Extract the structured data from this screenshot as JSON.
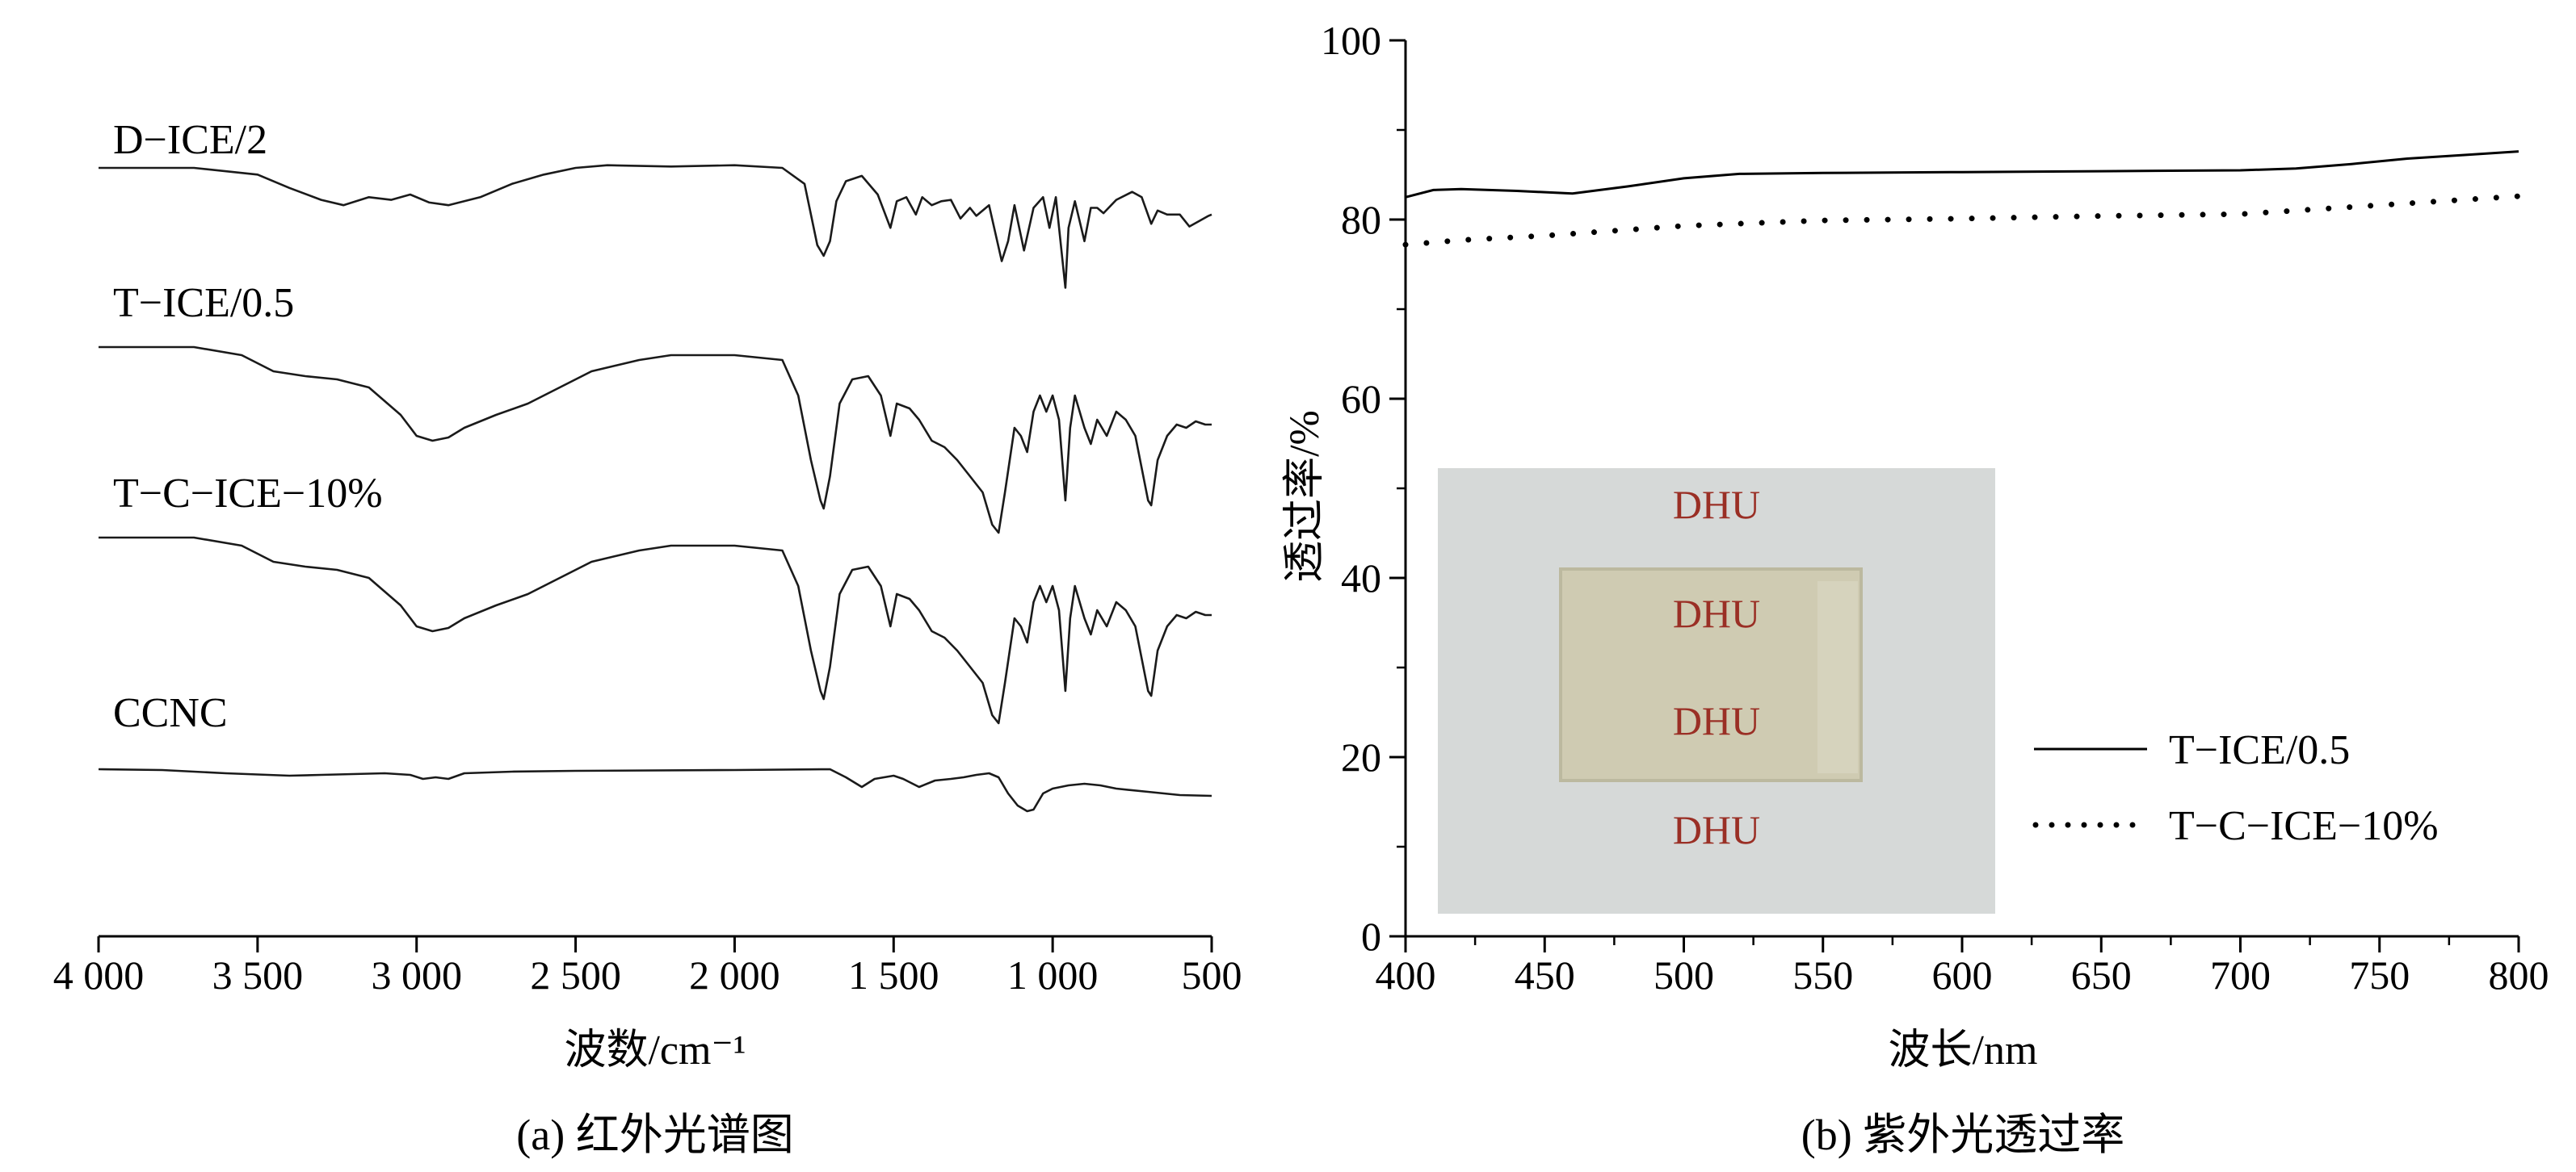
{
  "chart_data": [
    {
      "type": "line",
      "caption": "(a) 红外光谱图",
      "xlabel": "波数/cm⁻¹",
      "xlim": [
        4000,
        500
      ],
      "x_reversed": true,
      "xticks": [
        4000,
        3500,
        3000,
        2500,
        2000,
        1500,
        1000,
        500
      ],
      "xtick_labels": [
        "4 000",
        "3 500",
        "3 000",
        "2 500",
        "2 000",
        "1 500",
        "1 000",
        "500"
      ],
      "y_axis_shown": false,
      "series": [
        {
          "name": "D−ICE/2",
          "points": [
            [
              4000,
              0.0
            ],
            [
              3700,
              0.0
            ],
            [
              3500,
              -0.05
            ],
            [
              3400,
              -0.15
            ],
            [
              3300,
              -0.24
            ],
            [
              3230,
              -0.28
            ],
            [
              3150,
              -0.22
            ],
            [
              3080,
              -0.24
            ],
            [
              3020,
              -0.2
            ],
            [
              2960,
              -0.26
            ],
            [
              2900,
              -0.28
            ],
            [
              2800,
              -0.22
            ],
            [
              2700,
              -0.12
            ],
            [
              2600,
              -0.05
            ],
            [
              2500,
              0.0
            ],
            [
              2400,
              0.02
            ],
            [
              2200,
              0.01
            ],
            [
              2000,
              0.02
            ],
            [
              1850,
              0.0
            ],
            [
              1780,
              -0.12
            ],
            [
              1740,
              -0.58
            ],
            [
              1720,
              -0.66
            ],
            [
              1700,
              -0.55
            ],
            [
              1680,
              -0.25
            ],
            [
              1650,
              -0.1
            ],
            [
              1600,
              -0.06
            ],
            [
              1550,
              -0.2
            ],
            [
              1510,
              -0.45
            ],
            [
              1490,
              -0.25
            ],
            [
              1460,
              -0.22
            ],
            [
              1430,
              -0.35
            ],
            [
              1410,
              -0.22
            ],
            [
              1380,
              -0.28
            ],
            [
              1350,
              -0.25
            ],
            [
              1320,
              -0.24
            ],
            [
              1290,
              -0.38
            ],
            [
              1260,
              -0.3
            ],
            [
              1240,
              -0.36
            ],
            [
              1200,
              -0.28
            ],
            [
              1160,
              -0.7
            ],
            [
              1140,
              -0.55
            ],
            [
              1120,
              -0.28
            ],
            [
              1090,
              -0.62
            ],
            [
              1060,
              -0.3
            ],
            [
              1030,
              -0.22
            ],
            [
              1010,
              -0.45
            ],
            [
              990,
              -0.22
            ],
            [
              960,
              -0.9
            ],
            [
              950,
              -0.45
            ],
            [
              930,
              -0.25
            ],
            [
              900,
              -0.55
            ],
            [
              880,
              -0.3
            ],
            [
              860,
              -0.3
            ],
            [
              840,
              -0.34
            ],
            [
              800,
              -0.24
            ],
            [
              750,
              -0.18
            ],
            [
              720,
              -0.22
            ],
            [
              690,
              -0.42
            ],
            [
              670,
              -0.32
            ],
            [
              640,
              -0.35
            ],
            [
              600,
              -0.35
            ],
            [
              570,
              -0.44
            ],
            [
              540,
              -0.4
            ],
            [
              510,
              -0.36
            ],
            [
              500,
              -0.35
            ]
          ]
        },
        {
          "name": "T−ICE/0.5",
          "points": [
            [
              4000,
              0.0
            ],
            [
              3700,
              0.0
            ],
            [
              3550,
              -0.05
            ],
            [
              3450,
              -0.15
            ],
            [
              3350,
              -0.18
            ],
            [
              3250,
              -0.2
            ],
            [
              3150,
              -0.25
            ],
            [
              3050,
              -0.42
            ],
            [
              3000,
              -0.55
            ],
            [
              2950,
              -0.58
            ],
            [
              2900,
              -0.56
            ],
            [
              2850,
              -0.5
            ],
            [
              2750,
              -0.42
            ],
            [
              2650,
              -0.35
            ],
            [
              2550,
              -0.25
            ],
            [
              2450,
              -0.15
            ],
            [
              2300,
              -0.08
            ],
            [
              2200,
              -0.05
            ],
            [
              2000,
              -0.05
            ],
            [
              1850,
              -0.08
            ],
            [
              1800,
              -0.3
            ],
            [
              1760,
              -0.7
            ],
            [
              1730,
              -0.95
            ],
            [
              1720,
              -1.0
            ],
            [
              1700,
              -0.8
            ],
            [
              1670,
              -0.35
            ],
            [
              1630,
              -0.2
            ],
            [
              1580,
              -0.18
            ],
            [
              1540,
              -0.3
            ],
            [
              1510,
              -0.55
            ],
            [
              1490,
              -0.35
            ],
            [
              1450,
              -0.38
            ],
            [
              1420,
              -0.45
            ],
            [
              1380,
              -0.58
            ],
            [
              1340,
              -0.62
            ],
            [
              1300,
              -0.7
            ],
            [
              1260,
              -0.8
            ],
            [
              1220,
              -0.9
            ],
            [
              1190,
              -1.1
            ],
            [
              1170,
              -1.15
            ],
            [
              1150,
              -0.9
            ],
            [
              1120,
              -0.5
            ],
            [
              1100,
              -0.55
            ],
            [
              1080,
              -0.65
            ],
            [
              1060,
              -0.4
            ],
            [
              1040,
              -0.3
            ],
            [
              1020,
              -0.4
            ],
            [
              1000,
              -0.3
            ],
            [
              980,
              -0.45
            ],
            [
              960,
              -0.95
            ],
            [
              945,
              -0.5
            ],
            [
              930,
              -0.3
            ],
            [
              900,
              -0.5
            ],
            [
              880,
              -0.6
            ],
            [
              860,
              -0.45
            ],
            [
              830,
              -0.55
            ],
            [
              800,
              -0.4
            ],
            [
              770,
              -0.45
            ],
            [
              740,
              -0.55
            ],
            [
              720,
              -0.75
            ],
            [
              700,
              -0.95
            ],
            [
              690,
              -0.98
            ],
            [
              670,
              -0.7
            ],
            [
              640,
              -0.55
            ],
            [
              610,
              -0.48
            ],
            [
              580,
              -0.5
            ],
            [
              550,
              -0.46
            ],
            [
              520,
              -0.48
            ],
            [
              500,
              -0.48
            ]
          ]
        },
        {
          "name": "T−C−ICE−10%",
          "points": [
            [
              4000,
              0.0
            ],
            [
              3700,
              0.0
            ],
            [
              3550,
              -0.05
            ],
            [
              3450,
              -0.15
            ],
            [
              3350,
              -0.18
            ],
            [
              3250,
              -0.2
            ],
            [
              3150,
              -0.25
            ],
            [
              3050,
              -0.42
            ],
            [
              3000,
              -0.55
            ],
            [
              2950,
              -0.58
            ],
            [
              2900,
              -0.56
            ],
            [
              2850,
              -0.5
            ],
            [
              2750,
              -0.42
            ],
            [
              2650,
              -0.35
            ],
            [
              2550,
              -0.25
            ],
            [
              2450,
              -0.15
            ],
            [
              2300,
              -0.08
            ],
            [
              2200,
              -0.05
            ],
            [
              2000,
              -0.05
            ],
            [
              1850,
              -0.08
            ],
            [
              1800,
              -0.3
            ],
            [
              1760,
              -0.7
            ],
            [
              1730,
              -0.95
            ],
            [
              1720,
              -1.0
            ],
            [
              1700,
              -0.8
            ],
            [
              1670,
              -0.35
            ],
            [
              1630,
              -0.2
            ],
            [
              1580,
              -0.18
            ],
            [
              1540,
              -0.3
            ],
            [
              1510,
              -0.55
            ],
            [
              1490,
              -0.35
            ],
            [
              1450,
              -0.38
            ],
            [
              1420,
              -0.45
            ],
            [
              1380,
              -0.58
            ],
            [
              1340,
              -0.62
            ],
            [
              1300,
              -0.7
            ],
            [
              1260,
              -0.8
            ],
            [
              1220,
              -0.9
            ],
            [
              1190,
              -1.1
            ],
            [
              1170,
              -1.15
            ],
            [
              1150,
              -0.9
            ],
            [
              1120,
              -0.5
            ],
            [
              1100,
              -0.55
            ],
            [
              1080,
              -0.65
            ],
            [
              1060,
              -0.4
            ],
            [
              1040,
              -0.3
            ],
            [
              1020,
              -0.4
            ],
            [
              1000,
              -0.3
            ],
            [
              980,
              -0.45
            ],
            [
              960,
              -0.95
            ],
            [
              945,
              -0.5
            ],
            [
              930,
              -0.3
            ],
            [
              900,
              -0.5
            ],
            [
              880,
              -0.6
            ],
            [
              860,
              -0.45
            ],
            [
              830,
              -0.55
            ],
            [
              800,
              -0.4
            ],
            [
              770,
              -0.45
            ],
            [
              740,
              -0.55
            ],
            [
              720,
              -0.75
            ],
            [
              700,
              -0.95
            ],
            [
              690,
              -0.98
            ],
            [
              670,
              -0.7
            ],
            [
              640,
              -0.55
            ],
            [
              610,
              -0.48
            ],
            [
              580,
              -0.5
            ],
            [
              550,
              -0.46
            ],
            [
              520,
              -0.48
            ],
            [
              500,
              -0.48
            ]
          ]
        },
        {
          "name": "CCNC",
          "points": [
            [
              4000,
              0.0
            ],
            [
              3800,
              -0.01
            ],
            [
              3600,
              -0.05
            ],
            [
              3400,
              -0.08
            ],
            [
              3300,
              -0.07
            ],
            [
              3200,
              -0.06
            ],
            [
              3100,
              -0.05
            ],
            [
              3020,
              -0.07
            ],
            [
              2980,
              -0.12
            ],
            [
              2940,
              -0.1
            ],
            [
              2900,
              -0.12
            ],
            [
              2850,
              -0.05
            ],
            [
              2700,
              -0.03
            ],
            [
              2500,
              -0.02
            ],
            [
              2000,
              -0.01
            ],
            [
              1700,
              0.0
            ],
            [
              1650,
              -0.1
            ],
            [
              1600,
              -0.22
            ],
            [
              1560,
              -0.12
            ],
            [
              1500,
              -0.08
            ],
            [
              1470,
              -0.12
            ],
            [
              1420,
              -0.22
            ],
            [
              1370,
              -0.14
            ],
            [
              1320,
              -0.12
            ],
            [
              1280,
              -0.1
            ],
            [
              1240,
              -0.07
            ],
            [
              1200,
              -0.05
            ],
            [
              1170,
              -0.1
            ],
            [
              1140,
              -0.3
            ],
            [
              1110,
              -0.45
            ],
            [
              1080,
              -0.52
            ],
            [
              1060,
              -0.5
            ],
            [
              1030,
              -0.3
            ],
            [
              1000,
              -0.24
            ],
            [
              950,
              -0.2
            ],
            [
              900,
              -0.18
            ],
            [
              850,
              -0.2
            ],
            [
              800,
              -0.24
            ],
            [
              700,
              -0.28
            ],
            [
              600,
              -0.32
            ],
            [
              500,
              -0.33
            ]
          ]
        }
      ]
    },
    {
      "type": "line",
      "caption": "(b) 紫外光透过率",
      "xlabel": "波长/nm",
      "ylabel": "透过率/%",
      "xlim": [
        400,
        800
      ],
      "ylim": [
        0,
        100
      ],
      "xticks": [
        400,
        450,
        500,
        550,
        600,
        650,
        700,
        750,
        800
      ],
      "yticks": [
        0,
        20,
        40,
        60,
        80,
        100
      ],
      "legend_position": "right",
      "inset_photo_labels": [
        "DHU",
        "DHU",
        "DHU",
        "DHU"
      ],
      "series": [
        {
          "name": "T−ICE/0.5",
          "style": "solid",
          "x": [
            400,
            410,
            420,
            440,
            460,
            480,
            500,
            520,
            550,
            600,
            650,
            700,
            720,
            740,
            760,
            780,
            800
          ],
          "y": [
            82.5,
            83.3,
            83.4,
            83.2,
            82.9,
            83.7,
            84.6,
            85.1,
            85.2,
            85.3,
            85.4,
            85.5,
            85.7,
            86.2,
            86.8,
            87.2,
            87.6
          ]
        },
        {
          "name": "T−C−ICE−10%",
          "style": "dotted",
          "x": [
            400,
            420,
            450,
            500,
            550,
            600,
            650,
            700,
            750,
            800
          ],
          "y": [
            77.2,
            77.7,
            78.2,
            79.3,
            79.9,
            80.1,
            80.4,
            80.6,
            81.6,
            82.6
          ]
        }
      ]
    }
  ]
}
